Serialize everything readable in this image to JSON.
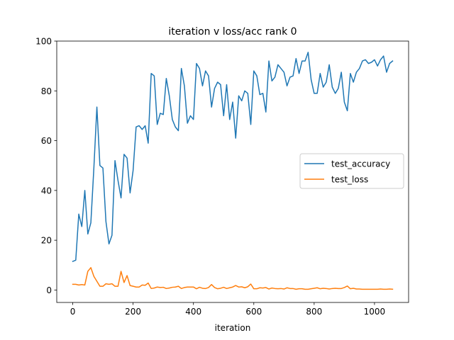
{
  "chart_data": {
    "type": "line",
    "title": "iteration v loss/acc rank 0",
    "xlabel": "iteration",
    "ylabel": "",
    "xlim": [
      -53,
      1113
    ],
    "ylim": [
      -5,
      100
    ],
    "xticks": [
      0,
      200,
      400,
      600,
      800,
      1000
    ],
    "yticks": [
      0,
      20,
      40,
      60,
      80,
      100
    ],
    "grid": false,
    "legend_position": "center-right",
    "series": [
      {
        "name": "test_accuracy",
        "color": "#1f77b4",
        "x": [
          0,
          10,
          20,
          30,
          40,
          50,
          60,
          70,
          80,
          90,
          100,
          110,
          120,
          130,
          140,
          150,
          160,
          170,
          180,
          190,
          200,
          210,
          220,
          230,
          240,
          250,
          260,
          270,
          280,
          290,
          300,
          310,
          320,
          330,
          340,
          350,
          360,
          370,
          380,
          390,
          400,
          410,
          420,
          430,
          440,
          450,
          460,
          470,
          480,
          490,
          500,
          510,
          520,
          530,
          540,
          550,
          560,
          570,
          580,
          590,
          600,
          610,
          620,
          630,
          640,
          650,
          660,
          670,
          680,
          690,
          700,
          710,
          720,
          730,
          740,
          750,
          760,
          770,
          780,
          790,
          800,
          810,
          820,
          830,
          840,
          850,
          860,
          870,
          880,
          890,
          900,
          910,
          920,
          930,
          940,
          950,
          960,
          970,
          980,
          990,
          1000,
          1010,
          1020,
          1030,
          1040,
          1050,
          1060
        ],
        "y": [
          11.5,
          12,
          30.5,
          25.5,
          40,
          22.5,
          27,
          49,
          73.5,
          50,
          49,
          27.5,
          18.5,
          22,
          52,
          44,
          37,
          54.5,
          53,
          39,
          48,
          65.5,
          66,
          64.5,
          66,
          59,
          87,
          86,
          66.5,
          71,
          70.5,
          85,
          78,
          68.5,
          65.5,
          64,
          89,
          82,
          67,
          70,
          68.5,
          91,
          89,
          82,
          88,
          86,
          73.5,
          81,
          83.5,
          82.5,
          70,
          82.5,
          68.5,
          75.5,
          61,
          78,
          76,
          80,
          79,
          66.5,
          88,
          86,
          78.5,
          79,
          71.5,
          92,
          84,
          85.5,
          90.5,
          89,
          87.5,
          82,
          85.5,
          86,
          93,
          87,
          92,
          92,
          95.5,
          84.5,
          79,
          79,
          87,
          81.5,
          83.5,
          90.5,
          81.5,
          79,
          81,
          87.5,
          75.5,
          72,
          87,
          83.5,
          87.5,
          89,
          92,
          92.5,
          91,
          91.5,
          92.5,
          90,
          92.5,
          94,
          87.5,
          91,
          92
        ]
      },
      {
        "name": "test_loss",
        "color": "#ff7f0e",
        "x": [
          0,
          10,
          20,
          30,
          40,
          50,
          60,
          70,
          80,
          90,
          100,
          110,
          120,
          130,
          140,
          150,
          160,
          170,
          180,
          190,
          200,
          210,
          220,
          230,
          240,
          250,
          260,
          270,
          280,
          290,
          300,
          310,
          320,
          330,
          340,
          350,
          360,
          370,
          380,
          390,
          400,
          410,
          420,
          430,
          440,
          450,
          460,
          470,
          480,
          490,
          500,
          510,
          520,
          530,
          540,
          550,
          560,
          570,
          580,
          590,
          600,
          610,
          620,
          630,
          640,
          650,
          660,
          670,
          680,
          690,
          700,
          710,
          720,
          730,
          740,
          750,
          760,
          770,
          780,
          790,
          800,
          810,
          820,
          830,
          840,
          850,
          860,
          870,
          880,
          890,
          900,
          910,
          920,
          930,
          940,
          950,
          960,
          970,
          980,
          990,
          1000,
          1010,
          1020,
          1030,
          1040,
          1050,
          1060
        ],
        "y": [
          2.3,
          2.3,
          2,
          2.2,
          2,
          7.5,
          9,
          5.5,
          3.5,
          1.5,
          1.5,
          2.5,
          2.3,
          2.5,
          1.5,
          1.5,
          7.5,
          3,
          5.8,
          1.8,
          1.5,
          1.2,
          1.2,
          2,
          1.9,
          2.8,
          0.6,
          0.8,
          1.2,
          1.0,
          1.1,
          0.6,
          0.8,
          1.1,
          1.2,
          1.5,
          0.6,
          1.0,
          1.2,
          1.2,
          1.2,
          0.5,
          1.1,
          0.7,
          0.6,
          1.0,
          2.2,
          1.0,
          0.5,
          0.7,
          1.1,
          0.6,
          0.9,
          1.2,
          1.8,
          1.2,
          1.3,
          0.9,
          1.3,
          2.4,
          0.5,
          0.5,
          0.9,
          0.8,
          1.0,
          0.4,
          0.8,
          0.6,
          0.5,
          0.6,
          0.4,
          0.9,
          0.6,
          0.6,
          0.3,
          0.5,
          0.5,
          0.3,
          0.3,
          0.5,
          0.7,
          0.9,
          0.5,
          0.7,
          0.6,
          0.4,
          0.6,
          0.7,
          0.6,
          0.6,
          1.0,
          1.6,
          0.5,
          0.7,
          0.4,
          0.4,
          0.3,
          0.3,
          0.3,
          0.3,
          0.3,
          0.3,
          0.4,
          0.3,
          0.3,
          0.4,
          0.3
        ]
      }
    ]
  }
}
